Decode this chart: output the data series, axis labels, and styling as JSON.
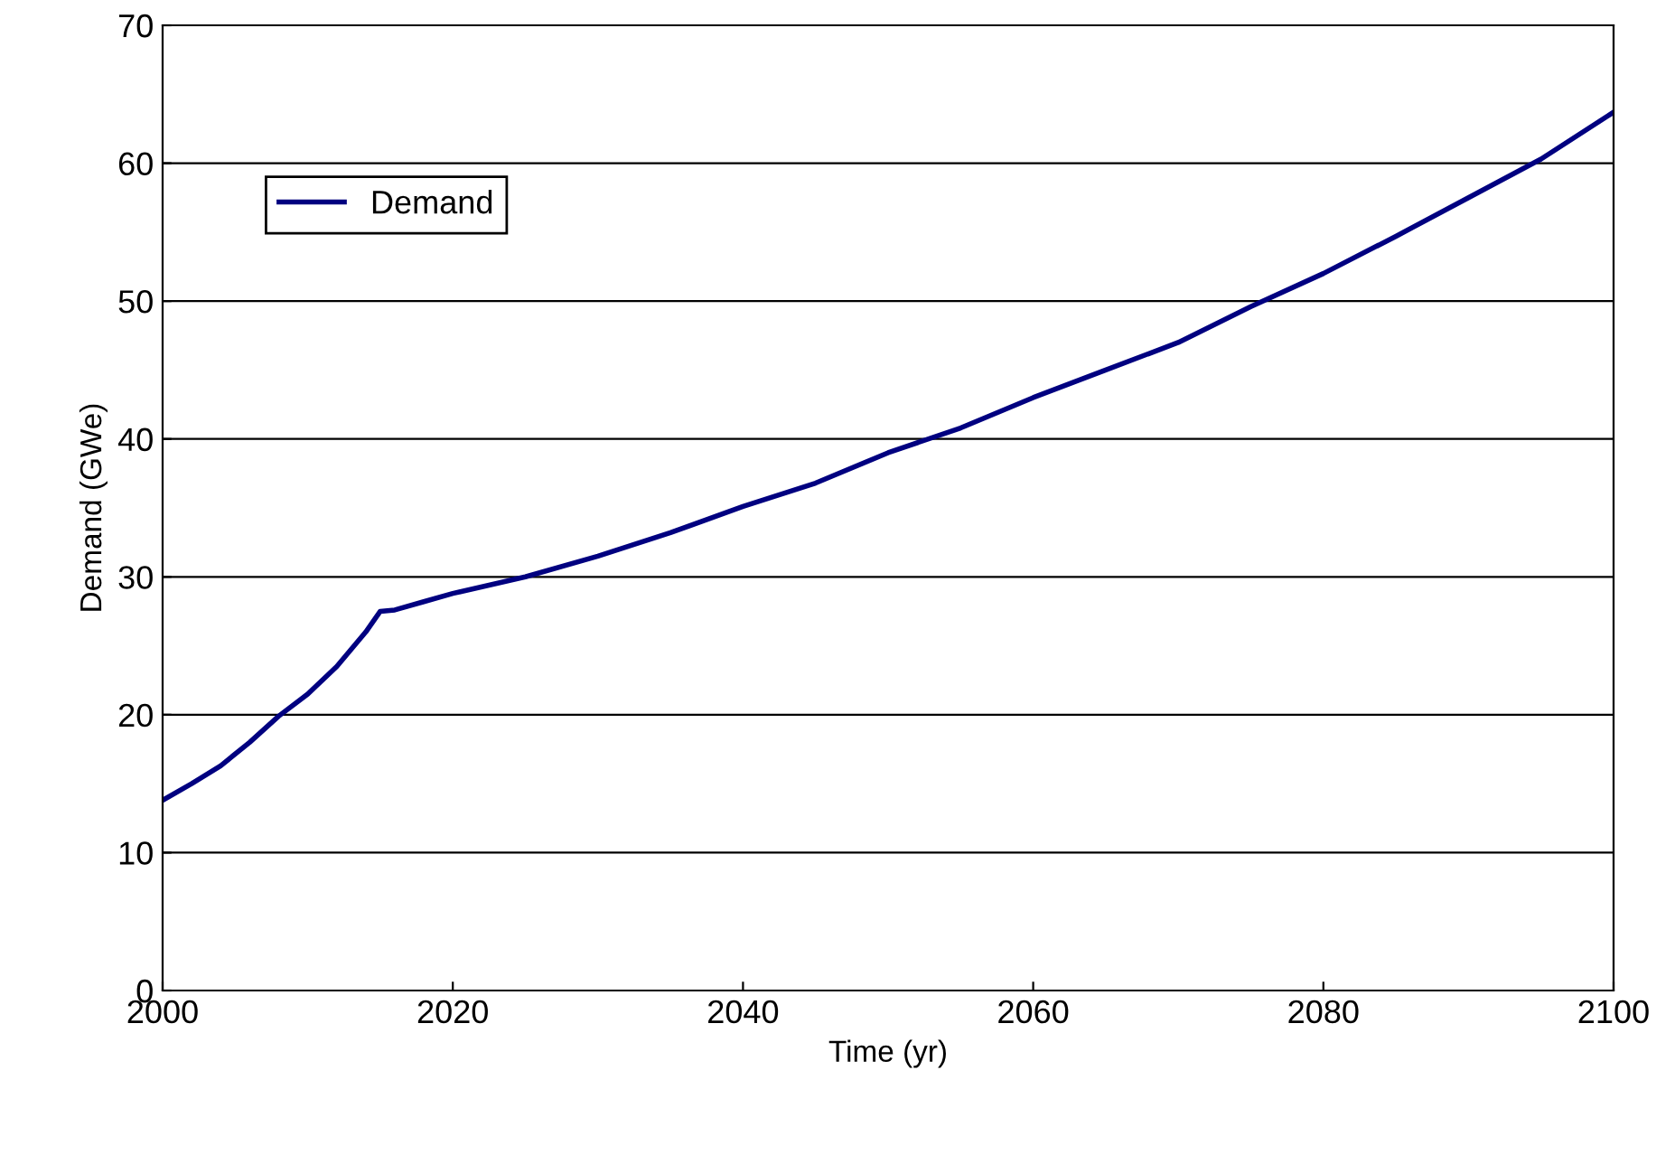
{
  "chart_data": {
    "type": "line",
    "xlabel": "Time (yr)",
    "ylabel": "Demand (GWe)",
    "x": [
      2000,
      2002,
      2004,
      2006,
      2008,
      2010,
      2012,
      2014,
      2015,
      2016,
      2018,
      2020,
      2025,
      2030,
      2035,
      2040,
      2045,
      2050,
      2055,
      2060,
      2065,
      2070,
      2075,
      2080,
      2085,
      2090,
      2095,
      2100
    ],
    "series": [
      {
        "name": "Demand",
        "color": "#000080",
        "values": [
          13.8,
          15.0,
          16.3,
          18.0,
          19.9,
          21.5,
          23.5,
          26.0,
          27.5,
          27.6,
          28.2,
          28.8,
          30.0,
          31.5,
          33.2,
          35.1,
          36.8,
          39.0,
          40.8,
          43.0,
          45.0,
          47.0,
          49.6,
          52.0,
          54.7,
          57.5,
          60.3,
          63.7
        ]
      }
    ],
    "xlim": [
      2000,
      2100
    ],
    "xticks": [
      2000,
      2020,
      2040,
      2060,
      2080,
      2100
    ],
    "ylim": [
      0,
      70
    ],
    "yticks": [
      0,
      10,
      20,
      30,
      40,
      50,
      60,
      70
    ],
    "grid": "y",
    "legend": "top left",
    "marker": "none",
    "line_style": "solid"
  }
}
